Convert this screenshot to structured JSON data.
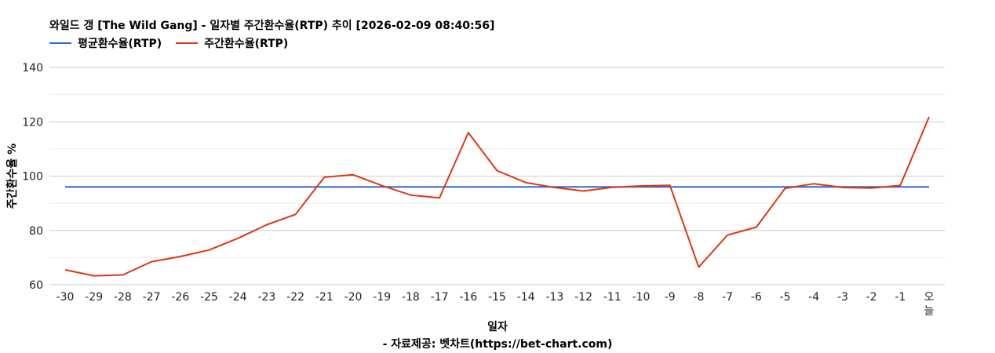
{
  "chart_data": {
    "type": "line",
    "title": "와일드 갱 [The Wild Gang] - 일자별 주간환수율(RTP) 추이 [2026-02-09 08:40:56]",
    "xlabel": "일자",
    "ylabel": "주간환수율 %",
    "footer": "- 자료제공: 벳차트(https://bet-chart.com)",
    "ylim": [
      60,
      140
    ],
    "yticks": [
      60,
      80,
      100,
      120,
      140
    ],
    "grid": true,
    "legend_position": "top-left",
    "categories": [
      "-30",
      "-29",
      "-28",
      "-27",
      "-26",
      "-25",
      "-24",
      "-23",
      "-22",
      "-21",
      "-20",
      "-19",
      "-18",
      "-17",
      "-16",
      "-15",
      "-14",
      "-13",
      "-12",
      "-11",
      "-10",
      "-9",
      "-8",
      "-7",
      "-6",
      "-5",
      "-4",
      "-3",
      "-2",
      "-1",
      "오늘"
    ],
    "series": [
      {
        "name": "평균환수율(RTP)",
        "color": "#3366cc",
        "values": [
          96,
          96,
          96,
          96,
          96,
          96,
          96,
          96,
          96,
          96,
          96,
          96,
          96,
          96,
          96,
          96,
          96,
          96,
          96,
          96,
          96,
          96,
          96,
          96,
          96,
          96,
          96,
          96,
          96,
          96,
          96
        ]
      },
      {
        "name": "주간환수율(RTP)",
        "color": "#dc3912",
        "values": [
          65.5,
          63.3,
          63.6,
          68.5,
          70.4,
          72.8,
          77.1,
          82.1,
          85.9,
          99.6,
          100.5,
          96.5,
          93.0,
          92.0,
          116.0,
          102.0,
          97.6,
          95.8,
          94.5,
          95.9,
          96.4,
          96.6,
          66.5,
          78.3,
          81.2,
          95.5,
          97.2,
          95.8,
          95.6,
          96.6,
          121.8
        ]
      }
    ]
  }
}
